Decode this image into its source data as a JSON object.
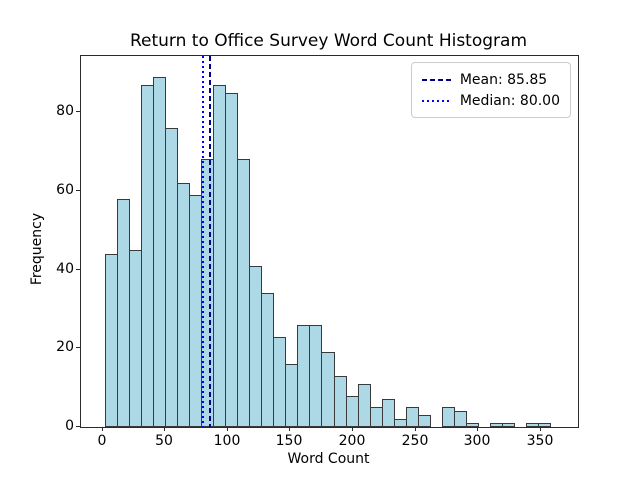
{
  "title": "Return to Office Survey Word Count Histogram",
  "chart_data": {
    "type": "bar",
    "subtype": "histogram",
    "title": "Return to Office Survey Word Count Histogram",
    "xlabel": "Word Count",
    "ylabel": "Frequency",
    "bin_start": 2,
    "bin_width": 9.6,
    "values": [
      44,
      58,
      45,
      87,
      89,
      76,
      62,
      59,
      68,
      87,
      85,
      68,
      41,
      34,
      23,
      16,
      26,
      26,
      19,
      13,
      8,
      11,
      5,
      7,
      2,
      5,
      3,
      0,
      5,
      4,
      1,
      0,
      1,
      1,
      0,
      1,
      1
    ],
    "x_ticks": [
      0,
      50,
      100,
      150,
      200,
      250,
      300,
      350
    ],
    "y_ticks": [
      0,
      20,
      40,
      60,
      80
    ],
    "xlim": [
      -17.2,
      379.6
    ],
    "ylim": [
      0,
      94.3
    ],
    "grid": false,
    "mean": 85.85,
    "median": 80.0,
    "legend_position": "upper right",
    "legend": [
      {
        "label": "Mean: 85.85",
        "style": "dashed",
        "color": "#00008b",
        "icon": "dashed-line-icon"
      },
      {
        "label": "Median: 80.00",
        "style": "dotted",
        "color": "#0000ff",
        "icon": "dotted-line-icon"
      }
    ],
    "bar_fill": "#add8e6",
    "bar_edge": "#3a3a3a"
  }
}
